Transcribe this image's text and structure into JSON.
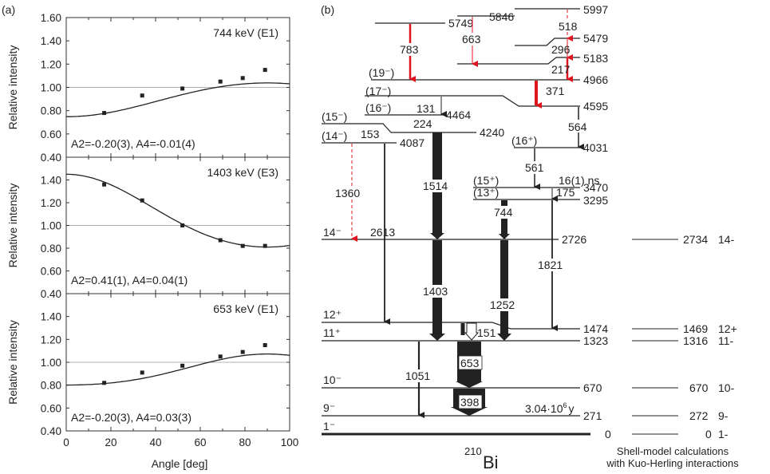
{
  "panel_labels": {
    "a": "(a)",
    "b": "(b)"
  },
  "chart_data": [
    {
      "type": "scatter",
      "title": "744 keV (E1)",
      "ylabel": "Relative intensity",
      "xlabel": "",
      "xlim": [
        0,
        100
      ],
      "ylim": [
        0.4,
        1.6
      ],
      "yticks": [
        "0.40",
        "0.60",
        "0.80",
        "1.00",
        "1.20",
        "1.40",
        "1.60"
      ],
      "x": [
        17,
        34,
        52,
        69,
        79,
        89
      ],
      "y": [
        0.78,
        0.93,
        0.99,
        1.05,
        1.08,
        1.15
      ],
      "fit": {
        "a0": 0.947,
        "a2": -0.2,
        "a4": -0.01
      },
      "reference_line": 1.0,
      "annotation": "A2=-0.20(3), A4=-0.01(4)"
    },
    {
      "type": "scatter",
      "title": "1403 keV (E3)",
      "ylabel": "Relative intensity",
      "xlabel": "",
      "xlim": [
        0,
        100
      ],
      "ylim": [
        0.4,
        1.6
      ],
      "yticks": [
        "0.40",
        "0.60",
        "0.80",
        "1.00",
        "1.20",
        "1.40",
        ""
      ],
      "x": [
        17,
        34,
        52,
        69,
        79,
        89
      ],
      "y": [
        1.36,
        1.22,
        1.0,
        0.87,
        0.82,
        0.82
      ],
      "fit": {
        "a0": 1.0,
        "a2": 0.41,
        "a4": 0.04
      },
      "reference_line": 1.0,
      "annotation": "A2=0.41(1), A4=0.04(1)"
    },
    {
      "type": "scatter",
      "title": "653 keV (E1)",
      "ylabel": "Relative intensity",
      "xlabel": "Angle [deg]",
      "xlim": [
        0,
        100
      ],
      "ylim": [
        0.4,
        1.6
      ],
      "yticks": [
        "0.40",
        "0.60",
        "0.80",
        "1.00",
        "1.20",
        "1.40",
        ""
      ],
      "xticks": [
        "0",
        "20",
        "40",
        "60",
        "80",
        "100"
      ],
      "x": [
        17,
        34,
        52,
        69,
        79,
        89
      ],
      "y": [
        0.82,
        0.91,
        0.97,
        1.05,
        1.09,
        1.15
      ],
      "fit": {
        "a0": 0.965,
        "a2": -0.2,
        "a4": 0.03
      },
      "reference_line": 1.0,
      "annotation": "A2=-0.20(3), A4=0.03(3)"
    }
  ],
  "level_scheme": {
    "nucleus": "Bi",
    "mass": "210",
    "levels": [
      {
        "energy": "5997"
      },
      {
        "energy": "5846"
      },
      {
        "energy": "5749"
      },
      {
        "energy": "5479"
      },
      {
        "energy": "5183"
      },
      {
        "energy": "4966",
        "spin": "(19⁻)"
      },
      {
        "energy": "4595",
        "spin": "(17⁻)"
      },
      {
        "energy": "4464",
        "spin": "(16⁻)"
      },
      {
        "energy": "4240",
        "spin": "(15⁻)"
      },
      {
        "energy": "4087",
        "spin": "(14⁻)"
      },
      {
        "energy": "4031",
        "spin": "(16⁺)"
      },
      {
        "energy": "3470",
        "spin": "(15⁺)"
      },
      {
        "energy": "3295",
        "spin": "(13⁺)"
      },
      {
        "energy": "2726",
        "spin": "14⁻"
      },
      {
        "energy": "1474",
        "spin": "12⁺"
      },
      {
        "energy": "1323",
        "spin": "11⁺"
      },
      {
        "energy": "670",
        "spin": "10⁻"
      },
      {
        "energy": "271",
        "spin": "9⁻"
      },
      {
        "energy": "0",
        "spin": "1⁻"
      }
    ],
    "transitions": [
      "783",
      "663",
      "518",
      "296",
      "217",
      "371",
      "131",
      "224",
      "564",
      "153",
      "561",
      "1360",
      "1514",
      "175",
      "744",
      "2613",
      "1403",
      "1252",
      "1821",
      "151",
      "1051",
      "653",
      "398"
    ],
    "isomer_label": "16(1) ns",
    "halflife_base": "3.04·10",
    "halflife_exp": "6",
    "halflife_unit": "y"
  },
  "shell_model": {
    "levels": [
      {
        "energy": "2734",
        "spin": "14-"
      },
      {
        "energy": "1469",
        "spin": "12+"
      },
      {
        "energy": "1316",
        "spin": "11-"
      },
      {
        "energy": "670",
        "spin": "10-"
      },
      {
        "energy": "272",
        "spin": "9-"
      },
      {
        "energy": "0",
        "spin": "1-"
      }
    ],
    "caption_line1": "Shell-model calculations",
    "caption_line2": "with Kuo-Herling interactions"
  }
}
